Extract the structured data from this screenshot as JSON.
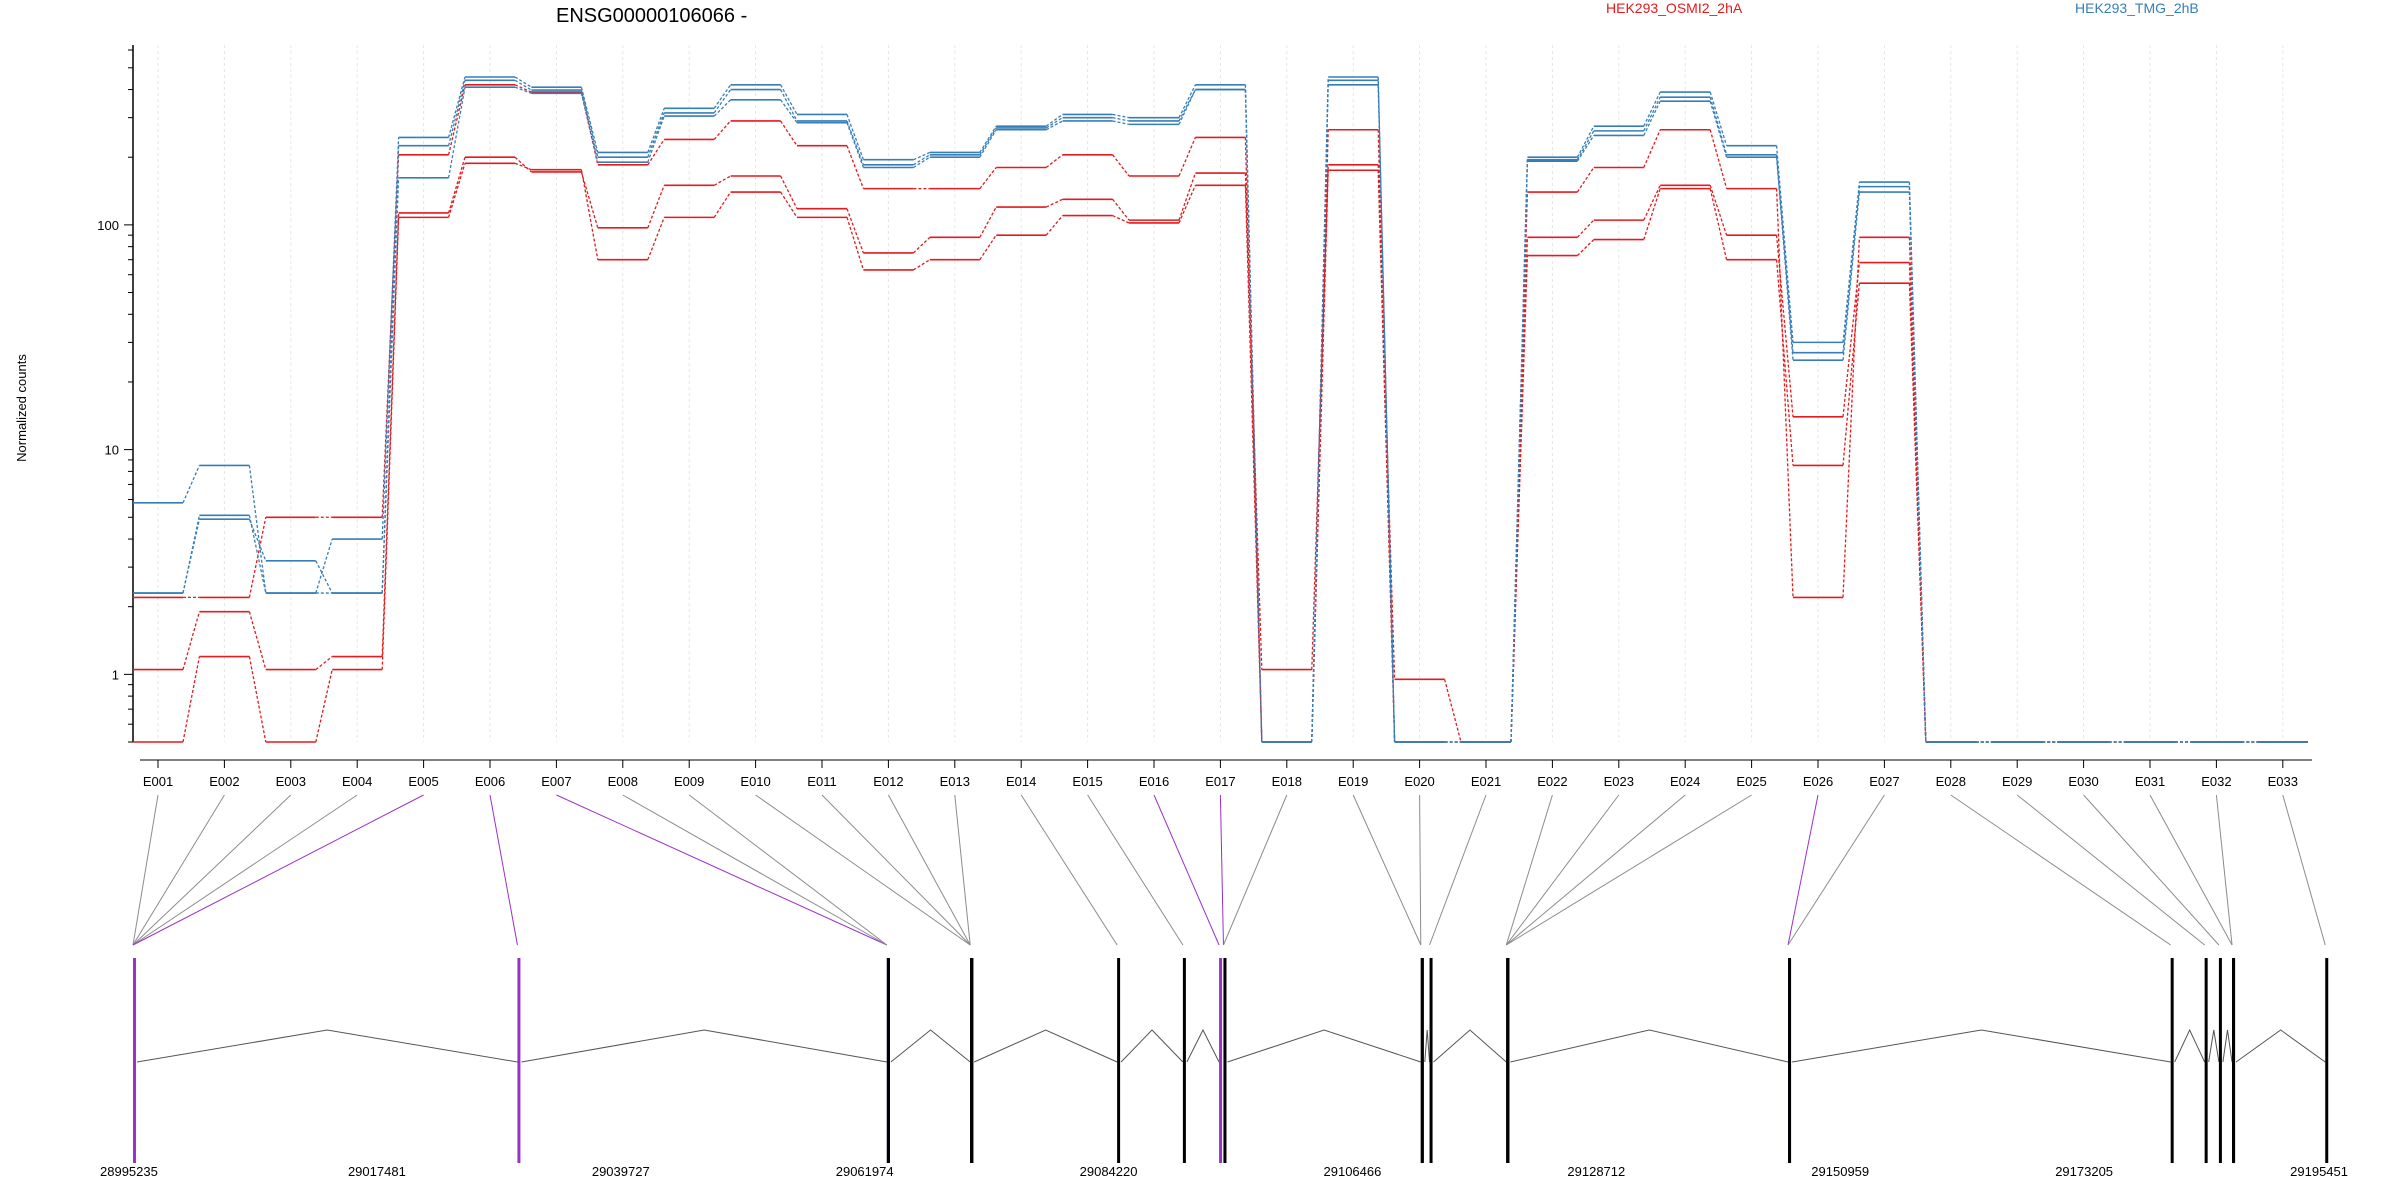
{
  "chart_data": {
    "type": "line",
    "title": "ENSG00000106066 -",
    "ylabel": "Normalized counts",
    "y_scale": "log",
    "ylim": [
      0.5,
      600
    ],
    "y_ticks": [
      1,
      10,
      100
    ],
    "y_tick_labels": [
      "1",
      "10",
      "100"
    ],
    "grid": "vertical dotted lines at exon centers",
    "legend_placement": "top",
    "categories": [
      "E001",
      "E002",
      "E003",
      "E004",
      "E005",
      "E006",
      "E007",
      "E008",
      "E009",
      "E010",
      "E011",
      "E012",
      "E013",
      "E014",
      "E015",
      "E016",
      "E017",
      "E018",
      "E019",
      "E020",
      "E021",
      "E022",
      "E023",
      "E024",
      "E025",
      "E026",
      "E027",
      "E028",
      "E029",
      "E030",
      "E031",
      "E032",
      "E033"
    ],
    "series": [
      {
        "name": "HEK293_OSMI2_2hA",
        "group": "HEK293_OSMI2_2hA",
        "color": "#e41a1c",
        "values": [
          2.2,
          2.2,
          5.0,
          5.0,
          205,
          420,
          390,
          185,
          240,
          290,
          225,
          145,
          145,
          180,
          205,
          165,
          245,
          0.5,
          265,
          0.5,
          0.5,
          140,
          180,
          265,
          145,
          2.2,
          88,
          0.5,
          0.5,
          0.5,
          0.5,
          0.5,
          0.5
        ]
      },
      {
        "name": "HEK293_OSMI2_2hA",
        "group": "HEK293_OSMI2_2hA",
        "color": "#e41a1c",
        "values": [
          1.05,
          1.9,
          1.05,
          1.2,
          113,
          200,
          172,
          97,
          150,
          165,
          118,
          75,
          88,
          120,
          130,
          105,
          170,
          1.05,
          185,
          0.95,
          0.5,
          88,
          105,
          150,
          90,
          14,
          68,
          0.5,
          0.5,
          0.5,
          0.5,
          0.5,
          0.5
        ]
      },
      {
        "name": "HEK293_OSMI2_2hA",
        "group": "HEK293_OSMI2_2hA",
        "color": "#e41a1c",
        "values": [
          0.5,
          1.2,
          0.5,
          1.05,
          108,
          188,
          176,
          70,
          108,
          140,
          108,
          63,
          70,
          90,
          110,
          102,
          150,
          0.5,
          175,
          0.5,
          0.5,
          73,
          86,
          145,
          70,
          8.5,
          55,
          0.5,
          0.5,
          0.5,
          0.5,
          0.5,
          0.5
        ]
      },
      {
        "name": "HEK293_TMG_2hB",
        "group": "HEK293_TMG_2hB",
        "color": "#377eb8",
        "values": [
          5.8,
          8.5,
          2.3,
          4.0,
          245,
          455,
          410,
          210,
          330,
          420,
          310,
          195,
          210,
          275,
          310,
          300,
          420,
          0.5,
          455,
          0.5,
          0.5,
          200,
          275,
          390,
          225,
          30,
          155,
          0.5,
          0.5,
          0.5,
          0.5,
          0.5,
          0.5
        ]
      },
      {
        "name": "HEK293_TMG_2hB",
        "group": "HEK293_TMG_2hB",
        "color": "#377eb8",
        "values": [
          2.3,
          5.1,
          2.3,
          2.3,
          225,
          440,
          398,
          200,
          315,
          400,
          290,
          185,
          205,
          270,
          300,
          290,
          400,
          0.5,
          440,
          0.5,
          0.5,
          195,
          262,
          370,
          205,
          27,
          148,
          0.5,
          0.5,
          0.5,
          0.5,
          0.5,
          0.5
        ]
      },
      {
        "name": "HEK293_TMG_2hB",
        "group": "HEK293_TMG_2hB",
        "color": "#377eb8",
        "values": [
          2.3,
          4.9,
          3.2,
          2.3,
          162,
          410,
          385,
          190,
          305,
          360,
          285,
          180,
          200,
          265,
          290,
          280,
          400,
          0.5,
          420,
          0.5,
          0.5,
          192,
          250,
          355,
          200,
          25,
          140,
          0.5,
          0.5,
          0.5,
          0.5,
          0.5,
          0.5
        ]
      }
    ],
    "legend": [
      {
        "label": "HEK293_OSMI2_2hA",
        "color": "#e41a1c"
      },
      {
        "label": "HEK293_TMG_2hB",
        "color": "#377eb8"
      }
    ],
    "gene_model": {
      "xlim": [
        28995235,
        29195451
      ],
      "coord_labels": [
        "28995235",
        "29017481",
        "29039727",
        "29061974",
        "29084220",
        "29106466",
        "29128712",
        "29150959",
        "29173205",
        "29195451"
      ],
      "exon_start_positions": [
        28995235,
        28995235,
        28995235,
        28995235,
        28995235,
        29030300,
        29064000,
        29064000,
        29064000,
        29071600,
        29071600,
        29071600,
        29071600,
        29085000,
        29091000,
        29094300,
        29094700,
        29094700,
        29112700,
        29112700,
        29113500,
        29120500,
        29120500,
        29120500,
        29120500,
        29146200,
        29146200,
        29181100,
        29184200,
        29185500,
        29186700,
        29186700,
        29195200
      ],
      "highlighted_exons": [
        "E005",
        "E006",
        "E007",
        "E016",
        "E017",
        "E026"
      ],
      "highlight_color": "#9932cc"
    }
  }
}
